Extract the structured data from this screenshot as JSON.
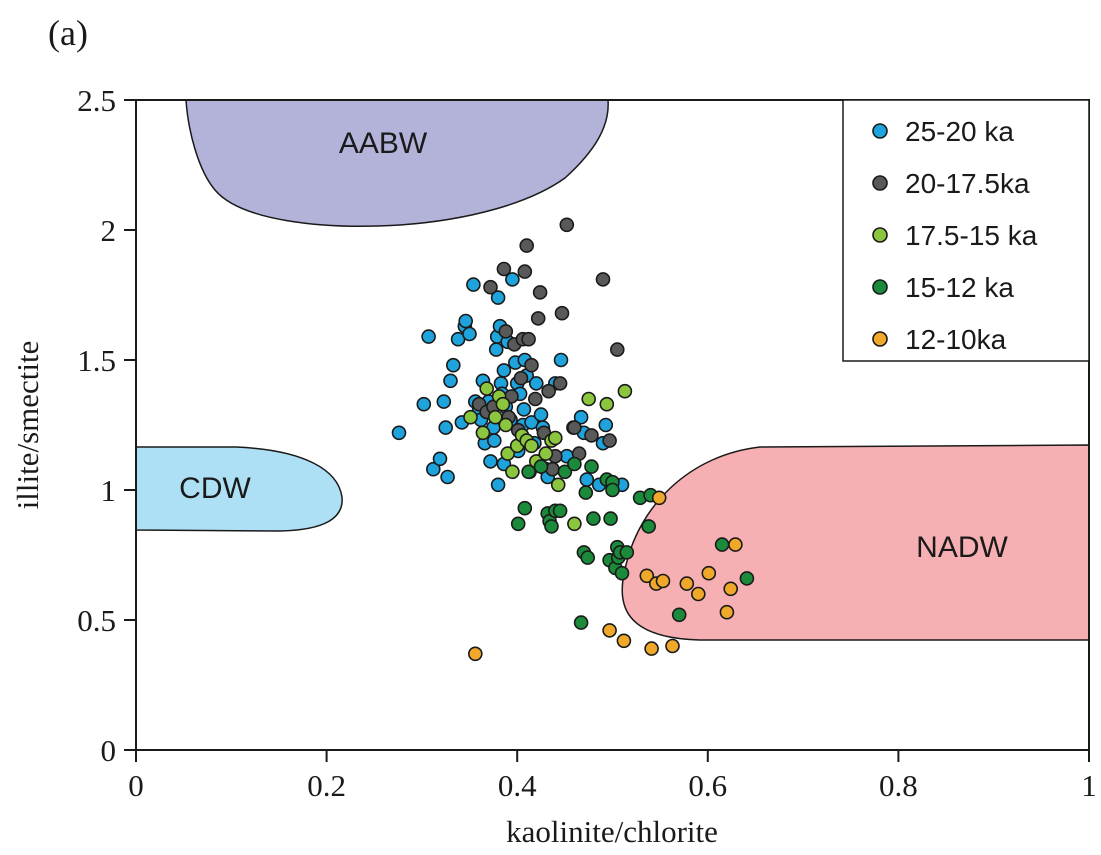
{
  "panel_label": "(a)",
  "chart_data": {
    "type": "scatter",
    "xlabel": "kaolinite/chlorite",
    "ylabel": "illite/smectite",
    "xlim": [
      0,
      1
    ],
    "ylim": [
      0,
      2.5
    ],
    "xticks": [
      "0",
      "0.2",
      "0.4",
      "0.6",
      "0.8",
      "1"
    ],
    "yticks": [
      "0",
      "0.5",
      "1",
      "1.5",
      "2",
      "2.5"
    ],
    "legend_position": "top-right",
    "water_masses": [
      {
        "name": "AABW",
        "color": "#b3b3d9"
      },
      {
        "name": "CDW",
        "color": "#aee0f5"
      },
      {
        "name": "NADW",
        "color": "#f6b0b3"
      }
    ],
    "series": [
      {
        "name": "25-20 ka",
        "color": "#1ea3dc",
        "points": [
          [
            0.276,
            1.22
          ],
          [
            0.302,
            1.33
          ],
          [
            0.307,
            1.59
          ],
          [
            0.312,
            1.08
          ],
          [
            0.319,
            1.12
          ],
          [
            0.323,
            1.34
          ],
          [
            0.325,
            1.24
          ],
          [
            0.327,
            1.05
          ],
          [
            0.33,
            1.42
          ],
          [
            0.333,
            1.48
          ],
          [
            0.338,
            1.58
          ],
          [
            0.342,
            1.26
          ],
          [
            0.345,
            1.63
          ],
          [
            0.346,
            1.65
          ],
          [
            0.35,
            1.6
          ],
          [
            0.354,
            1.79
          ],
          [
            0.356,
            1.34
          ],
          [
            0.36,
            1.31
          ],
          [
            0.362,
            1.27
          ],
          [
            0.364,
            1.42
          ],
          [
            0.366,
            1.18
          ],
          [
            0.37,
            1.34
          ],
          [
            0.372,
            1.11
          ],
          [
            0.375,
            1.24
          ],
          [
            0.376,
            1.19
          ],
          [
            0.378,
            1.54
          ],
          [
            0.379,
            1.59
          ],
          [
            0.38,
            1.02
          ],
          [
            0.38,
            1.74
          ],
          [
            0.382,
            1.63
          ],
          [
            0.383,
            1.41
          ],
          [
            0.384,
            1.37
          ],
          [
            0.386,
            1.1
          ],
          [
            0.386,
            1.46
          ],
          [
            0.388,
            1.32
          ],
          [
            0.39,
            1.57
          ],
          [
            0.393,
            1.27
          ],
          [
            0.395,
            1.81
          ],
          [
            0.398,
            1.49
          ],
          [
            0.4,
            1.41
          ],
          [
            0.401,
            1.15
          ],
          [
            0.403,
            1.37
          ],
          [
            0.406,
            1.25
          ],
          [
            0.407,
            1.31
          ],
          [
            0.408,
            1.5
          ],
          [
            0.41,
            1.44
          ],
          [
            0.413,
            1.07
          ],
          [
            0.415,
            1.26
          ],
          [
            0.418,
            1.18
          ],
          [
            0.42,
            1.41
          ],
          [
            0.423,
            1.11
          ],
          [
            0.425,
            1.29
          ],
          [
            0.427,
            1.24
          ],
          [
            0.43,
            1.08
          ],
          [
            0.432,
            1.05
          ],
          [
            0.44,
            1.41
          ],
          [
            0.446,
            1.5
          ],
          [
            0.452,
            1.13
          ],
          [
            0.459,
            1.24
          ],
          [
            0.467,
            1.28
          ],
          [
            0.47,
            1.22
          ],
          [
            0.473,
            1.04
          ],
          [
            0.49,
            1.18
          ],
          [
            0.493,
            1.25
          ],
          [
            0.51,
            1.02
          ],
          [
            0.486,
            1.02
          ]
        ]
      },
      {
        "name": "20-17.5ka",
        "color": "#595959",
        "points": [
          [
            0.36,
            1.33
          ],
          [
            0.368,
            1.3
          ],
          [
            0.372,
            1.78
          ],
          [
            0.375,
            1.32
          ],
          [
            0.386,
            1.85
          ],
          [
            0.388,
            1.61
          ],
          [
            0.391,
            1.28
          ],
          [
            0.394,
            1.36
          ],
          [
            0.397,
            1.56
          ],
          [
            0.401,
            1.23
          ],
          [
            0.404,
            1.43
          ],
          [
            0.406,
            1.58
          ],
          [
            0.408,
            1.84
          ],
          [
            0.41,
            1.94
          ],
          [
            0.412,
            1.58
          ],
          [
            0.415,
            1.48
          ],
          [
            0.419,
            1.35
          ],
          [
            0.422,
            1.66
          ],
          [
            0.424,
            1.76
          ],
          [
            0.428,
            1.22
          ],
          [
            0.433,
            1.38
          ],
          [
            0.437,
            1.08
          ],
          [
            0.44,
            1.13
          ],
          [
            0.445,
            1.41
          ],
          [
            0.447,
            1.68
          ],
          [
            0.452,
            2.02
          ],
          [
            0.46,
            1.24
          ],
          [
            0.465,
            1.14
          ],
          [
            0.478,
            1.21
          ],
          [
            0.49,
            1.81
          ],
          [
            0.497,
            1.19
          ],
          [
            0.505,
            1.54
          ]
        ]
      },
      {
        "name": "17.5-15 ka",
        "color": "#8cc63f",
        "points": [
          [
            0.351,
            1.28
          ],
          [
            0.364,
            1.22
          ],
          [
            0.368,
            1.39
          ],
          [
            0.377,
            1.28
          ],
          [
            0.381,
            1.36
          ],
          [
            0.385,
            1.33
          ],
          [
            0.388,
            1.25
          ],
          [
            0.39,
            1.14
          ],
          [
            0.395,
            1.07
          ],
          [
            0.4,
            1.17
          ],
          [
            0.405,
            1.21
          ],
          [
            0.41,
            1.19
          ],
          [
            0.415,
            1.17
          ],
          [
            0.42,
            1.11
          ],
          [
            0.43,
            1.14
          ],
          [
            0.436,
            1.19
          ],
          [
            0.44,
            1.2
          ],
          [
            0.443,
            1.02
          ],
          [
            0.46,
            0.87
          ],
          [
            0.475,
            1.35
          ],
          [
            0.494,
            1.33
          ],
          [
            0.513,
            1.38
          ]
        ]
      },
      {
        "name": "15-12 ka",
        "color": "#1b8a3a",
        "points": [
          [
            0.401,
            0.87
          ],
          [
            0.408,
            0.93
          ],
          [
            0.412,
            1.07
          ],
          [
            0.425,
            1.09
          ],
          [
            0.432,
            0.91
          ],
          [
            0.434,
            0.88
          ],
          [
            0.436,
            0.86
          ],
          [
            0.44,
            0.92
          ],
          [
            0.445,
            0.92
          ],
          [
            0.45,
            1.07
          ],
          [
            0.46,
            1.1
          ],
          [
            0.467,
            0.49
          ],
          [
            0.47,
            0.76
          ],
          [
            0.472,
            0.99
          ],
          [
            0.474,
            0.74
          ],
          [
            0.478,
            1.09
          ],
          [
            0.48,
            0.89
          ],
          [
            0.494,
            1.04
          ],
          [
            0.497,
            0.73
          ],
          [
            0.498,
            0.89
          ],
          [
            0.5,
            1.03
          ],
          [
            0.5,
            1.0
          ],
          [
            0.503,
            0.7
          ],
          [
            0.505,
            0.78
          ],
          [
            0.506,
            0.74
          ],
          [
            0.508,
            0.76
          ],
          [
            0.51,
            0.68
          ],
          [
            0.515,
            0.76
          ],
          [
            0.529,
            0.97
          ],
          [
            0.538,
            0.86
          ],
          [
            0.54,
            0.98
          ],
          [
            0.57,
            0.52
          ],
          [
            0.615,
            0.79
          ],
          [
            0.641,
            0.66
          ]
        ]
      },
      {
        "name": "12-10ka",
        "color": "#f0a82a",
        "points": [
          [
            0.356,
            0.37
          ],
          [
            0.497,
            0.46
          ],
          [
            0.512,
            0.42
          ],
          [
            0.536,
            0.67
          ],
          [
            0.541,
            0.39
          ],
          [
            0.546,
            0.64
          ],
          [
            0.549,
            0.97
          ],
          [
            0.553,
            0.65
          ],
          [
            0.563,
            0.4
          ],
          [
            0.578,
            0.64
          ],
          [
            0.59,
            0.6
          ],
          [
            0.601,
            0.68
          ],
          [
            0.62,
            0.53
          ],
          [
            0.624,
            0.62
          ],
          [
            0.629,
            0.79
          ]
        ]
      }
    ]
  }
}
